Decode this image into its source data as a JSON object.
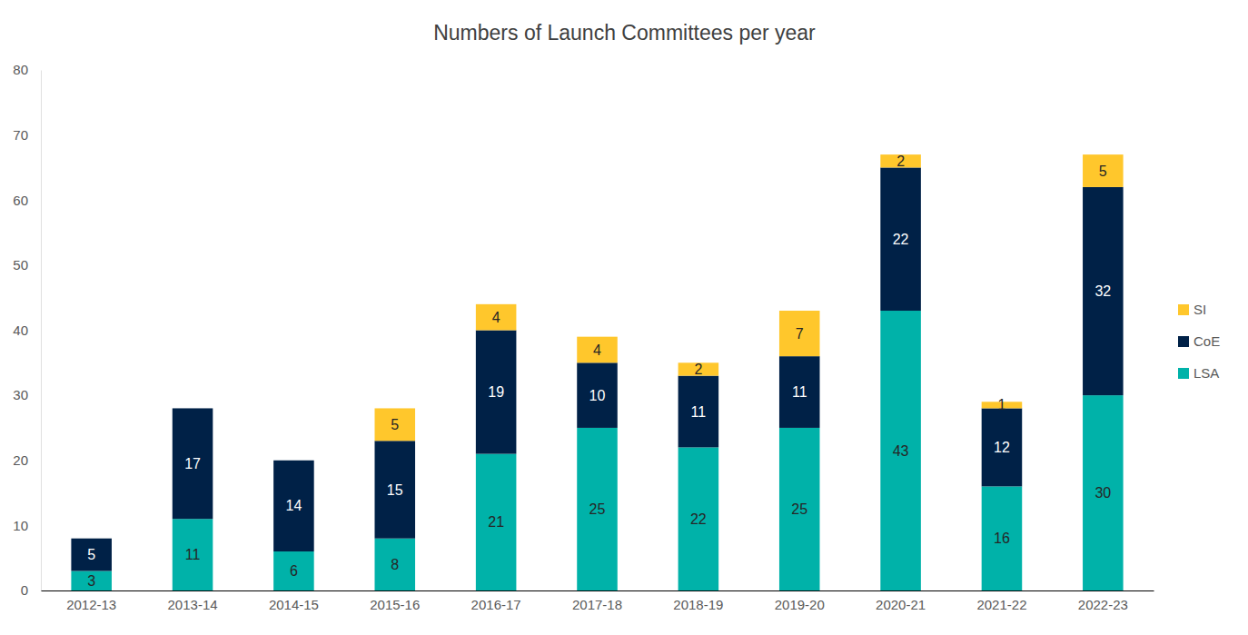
{
  "chart_data": {
    "type": "bar",
    "title": "Numbers of Launch Committees per year",
    "categories": [
      "2012-13",
      "2013-14",
      "2014-15",
      "2015-16",
      "2016-17",
      "2017-18",
      "2018-19",
      "2019-20",
      "2020-21",
      "2021-22",
      "2022-23"
    ],
    "series": [
      {
        "name": "LSA",
        "color": "#00b2a9",
        "values": [
          3,
          11,
          6,
          8,
          21,
          25,
          22,
          25,
          43,
          16,
          30
        ]
      },
      {
        "name": "CoE",
        "color": "#002147",
        "values": [
          5,
          17,
          14,
          15,
          19,
          10,
          11,
          11,
          22,
          12,
          32
        ]
      },
      {
        "name": "SI",
        "color": "#ffc72c",
        "values": [
          null,
          null,
          null,
          5,
          4,
          4,
          2,
          7,
          2,
          1,
          5
        ]
      }
    ],
    "stacked": true,
    "data_labels": true,
    "legend": "right",
    "grid": false,
    "ylim": [
      0,
      80
    ],
    "yticks": [
      0,
      10,
      20,
      30,
      40,
      50,
      60,
      70,
      80
    ]
  }
}
